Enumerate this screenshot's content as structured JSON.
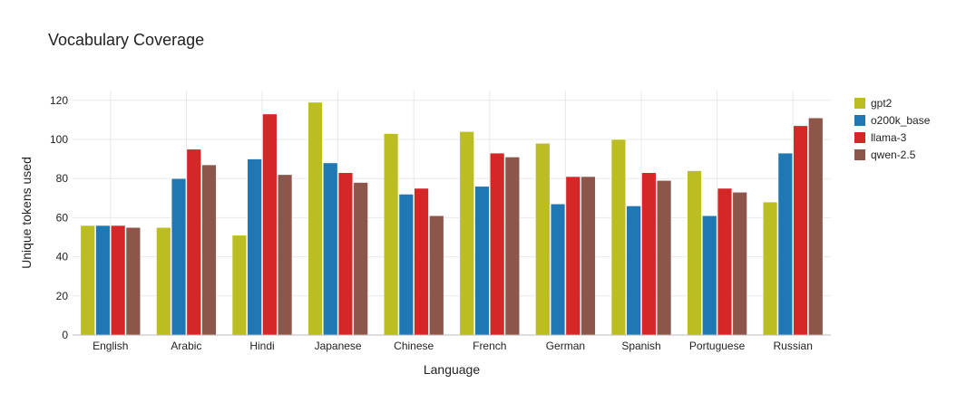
{
  "chart_data": {
    "type": "bar",
    "title": "Vocabulary Coverage",
    "xlabel": "Language",
    "ylabel": "Unique tokens used",
    "categories": [
      "English",
      "Arabic",
      "Hindi",
      "Japanese",
      "Chinese",
      "French",
      "German",
      "Spanish",
      "Portuguese",
      "Russian"
    ],
    "ylim": [
      0,
      125
    ],
    "yticks": [
      0,
      20,
      40,
      60,
      80,
      100,
      120
    ],
    "grid": true,
    "legend_position": "top-right",
    "series": [
      {
        "name": "gpt2",
        "color": "#bcbd22",
        "values": [
          56,
          55,
          51,
          119,
          103,
          104,
          98,
          100,
          84,
          68
        ]
      },
      {
        "name": "o200k_base",
        "color": "#1f77b4",
        "values": [
          56,
          80,
          90,
          88,
          72,
          76,
          67,
          66,
          61,
          93
        ]
      },
      {
        "name": "llama-3",
        "color": "#d62728",
        "values": [
          56,
          95,
          113,
          83,
          75,
          93,
          81,
          83,
          75,
          107
        ]
      },
      {
        "name": "qwen-2.5",
        "color": "#8c564b",
        "values": [
          55,
          87,
          82,
          78,
          61,
          91,
          81,
          79,
          73,
          111
        ]
      }
    ]
  }
}
